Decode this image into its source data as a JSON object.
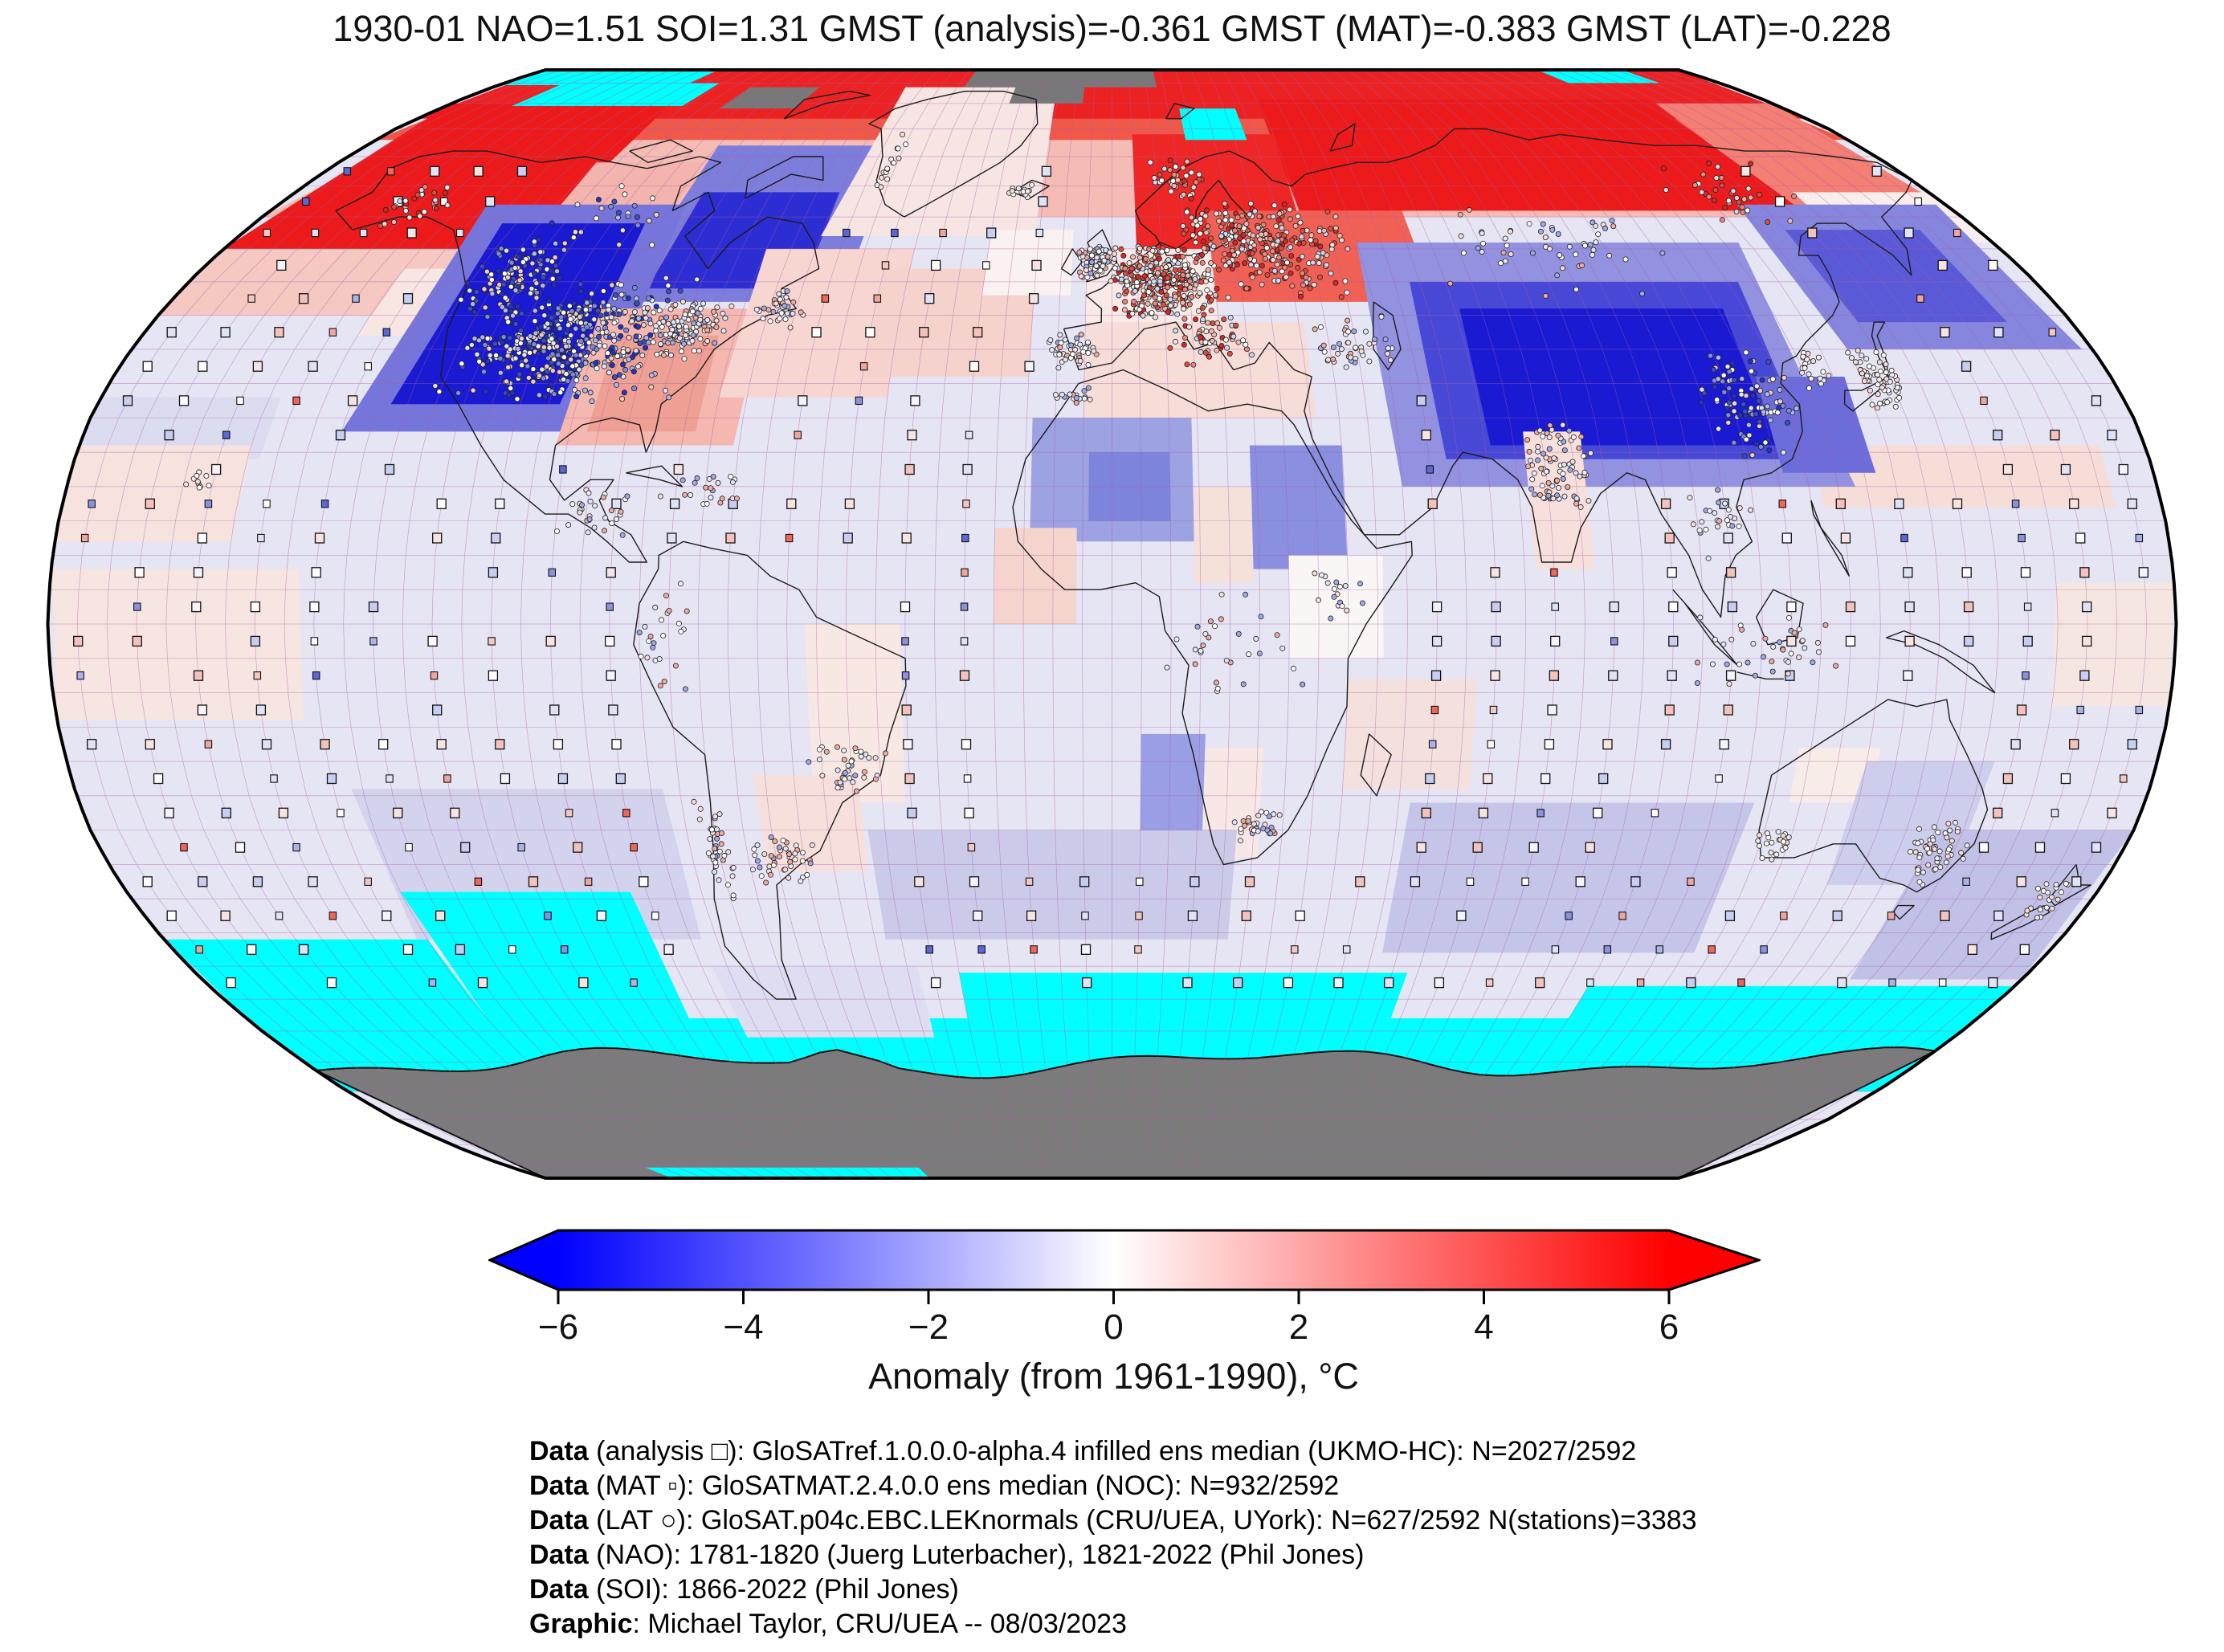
{
  "title": "1930-01 NAO=1.51 SOI=1.31 GMST (analysis)=-0.361 GMST (MAT)=-0.383 GMST (LAT)=-0.228",
  "colorbar": {
    "label": "Anomaly (from 1961-1990), °C",
    "ticks": [
      "−6",
      "−4",
      "−2",
      "0",
      "2",
      "4",
      "6"
    ],
    "min": -6,
    "max": 6,
    "left_color": "#0000fe",
    "mid_color": "#ffffff",
    "right_color": "#fe0000"
  },
  "credits": [
    {
      "bold": "Data",
      "rest": " (analysis □): GloSATref.1.0.0.0-alpha.4 infilled ens median (UKMO-HC): N=2027/2592"
    },
    {
      "bold": "Data",
      "rest": " (MAT ▫): GloSATMAT.2.4.0.0 ens median (NOC): N=932/2592"
    },
    {
      "bold": "Data",
      "rest": " (LAT ○): GloSAT.p04c.EBC.LEKnormals (CRU/UEA, UYork): N=627/2592 N(stations)=3383"
    },
    {
      "bold": "Data",
      "rest": " (NAO): 1781-1820 (Juerg Luterbacher), 1821-2022 (Phil Jones)"
    },
    {
      "bold": "Data",
      "rest": " (SOI): 1866-2022 (Phil Jones)"
    },
    {
      "bold": "Graphic",
      "rest": ": Michael Taylor, CRU/UEA -- 08/03/2023"
    }
  ],
  "chart_data": {
    "type": "heatmap",
    "projection": "robinson",
    "period": "1930-01",
    "indices": {
      "NAO": 1.51,
      "SOI": 1.31,
      "GMST_analysis": -0.361,
      "GMST_MAT": -0.383,
      "GMST_LAT": -0.228
    },
    "counts": {
      "analysis_cells": "2027/2592",
      "MAT_cells": "932/2592",
      "LAT_cells": "627/2592",
      "stations": 3383
    },
    "legend_symbols": {
      "analysis": "□",
      "MAT": "▫",
      "LAT": "○"
    },
    "colormap": {
      "name": "blue-white-red",
      "scale_min": -6,
      "scale_max": 6,
      "missing_ocean": "#00ffff",
      "no_data_land": "#7b7b7b",
      "grid_line": "#a85ca8"
    },
    "anomaly_patches": [
      [
        -180,
        60,
        180,
        90,
        "#f5bcb6"
      ],
      [
        -180,
        73,
        180,
        90,
        "#f0584a"
      ],
      [
        -180,
        77,
        180,
        90,
        "#ec2222"
      ],
      [
        -180,
        55,
        -120,
        80,
        "#ec1a1a"
      ],
      [
        -180,
        45,
        -130,
        55,
        "#f5c8c2"
      ],
      [
        -140,
        42,
        -120,
        52,
        "#f8e6e2"
      ],
      [
        -180,
        24,
        -148,
        33,
        "#dcdcf1"
      ],
      [
        -180,
        12,
        -150,
        26,
        "#f7e2de"
      ],
      [
        40,
        61,
        148,
        81,
        "#ec1a1a"
      ],
      [
        5,
        52,
        40,
        74,
        "#ee2626"
      ],
      [
        20,
        47,
        62,
        61,
        "#f16055"
      ],
      [
        -5,
        30,
        36,
        44,
        "#f6ddd8"
      ],
      [
        -5,
        44,
        20,
        55,
        "#f9eae8"
      ],
      [
        148,
        60,
        180,
        80,
        "#f37f75"
      ],
      [
        150,
        56,
        180,
        64,
        "#f8eeec"
      ],
      [
        -120,
        50,
        -95,
        69,
        "#f3b4ae"
      ],
      [
        -95,
        47,
        -52,
        72,
        "#7d7ddc"
      ],
      [
        -90,
        49,
        -60,
        64,
        "#2d2dd4"
      ],
      [
        -60,
        57,
        -16,
        84,
        "#f6e5e3"
      ],
      [
        -135,
        28,
        -92,
        62,
        "#7575db"
      ],
      [
        -128,
        32,
        -98,
        59,
        "#1a1ad2"
      ],
      [
        -97,
        26,
        -66,
        46,
        "#f4b8b0"
      ],
      [
        -92,
        28,
        -73,
        42,
        "#efa094"
      ],
      [
        -70,
        33,
        -40,
        55,
        "#f7d6d2"
      ],
      [
        -45,
        36,
        -15,
        52,
        "#f5d2cc"
      ],
      [
        -25,
        48,
        -8,
        58,
        "#faf2f0"
      ],
      [
        135,
        40,
        178,
        62,
        "#8686de"
      ],
      [
        140,
        44,
        168,
        58,
        "#5a5ad8"
      ],
      [
        122,
        17,
        172,
        26,
        "#f7ddd8"
      ],
      [
        50,
        20,
        128,
        56,
        "#9292e0"
      ],
      [
        58,
        24,
        122,
        50,
        "#4848d6"
      ],
      [
        66,
        26,
        116,
        46,
        "#1a1ad2"
      ],
      [
        116,
        22,
        132,
        36,
        "#6c6cda"
      ],
      [
        -14,
        12,
        14,
        30,
        "#9ca2e2"
      ],
      [
        -4,
        15,
        10,
        25,
        "#7c84dc"
      ],
      [
        24,
        8,
        40,
        26,
        "#8a8fe0"
      ],
      [
        30,
        -5,
        46,
        10,
        "#faf6f5"
      ],
      [
        14,
        6,
        24,
        20,
        "#f6e0da"
      ],
      [
        -20,
        0,
        -6,
        14,
        "#f5d4ce"
      ],
      [
        72,
        8,
        82,
        28,
        "#f7e0dc"
      ],
      [
        5,
        -32,
        16,
        -16,
        "#9a9ee4"
      ],
      [
        16,
        -34,
        26,
        -18,
        "#f8e8e5"
      ],
      [
        -180,
        -14,
        -138,
        8,
        "#f7e5e1"
      ],
      [
        160,
        -12,
        180,
        6,
        "#f6e6e2"
      ],
      [
        -52,
        -26,
        -36,
        0,
        "#f8e8e4"
      ],
      [
        -62,
        -36,
        -44,
        -22,
        "#f7e0db"
      ],
      [
        -43,
        -46,
        22,
        -30,
        "#cbcbe9"
      ],
      [
        52,
        -48,
        112,
        -26,
        "#c5c5ea"
      ],
      [
        40,
        -24,
        62,
        -8,
        "#f4e0dd"
      ],
      [
        -132,
        -46,
        -78,
        -24,
        "#d3d3ee"
      ],
      [
        118,
        -26,
        132,
        -18,
        "#f8ece8"
      ],
      [
        130,
        -38,
        152,
        -20,
        "#cdcdec"
      ],
      [
        146,
        -52,
        180,
        -30,
        "#c1c1e7"
      ],
      [
        -180,
        -70,
        180,
        -58,
        "#00ffff"
      ],
      [
        -180,
        -58,
        -130,
        -46,
        "#00ffff"
      ],
      [
        -130,
        -58,
        -88,
        -39,
        "#00ffff"
      ],
      [
        -30,
        -58,
        58,
        -51,
        "#00ffff"
      ],
      [
        95,
        -58,
        180,
        -53,
        "#00ffff"
      ],
      [
        -78,
        -61,
        -38,
        -50,
        "#deddf1"
      ],
      [
        -180,
        84.5,
        -125,
        90,
        "#00ffff"
      ],
      [
        -162,
        79.5,
        -116,
        85,
        "#00ffff"
      ],
      [
        135,
        85,
        162,
        90,
        "#00ffff"
      ],
      [
        18,
        73,
        33,
        79,
        "#00ffff"
      ],
      [
        -43,
        84,
        13,
        90,
        "#787878"
      ],
      [
        -28,
        80,
        -8,
        85,
        "#787878"
      ],
      [
        -105,
        79,
        -85,
        84,
        "#787878"
      ]
    ],
    "post_patches": [
      [
        -140,
        -90,
        -58,
        -86,
        "#00ffff"
      ]
    ],
    "station_clusters": [
      [
        -100,
        41,
        22,
        10,
        500,
        "cool"
      ],
      [
        -117,
        51,
        9,
        6,
        110,
        "cool"
      ],
      [
        -80,
        43,
        8,
        5,
        120,
        "mixed"
      ],
      [
        -63,
        46,
        5,
        3,
        40,
        "mixed"
      ],
      [
        -150,
        62,
        8,
        4,
        30,
        "warm"
      ],
      [
        -106,
        60,
        14,
        6,
        25,
        "cool"
      ],
      [
        10,
        50,
        11,
        6,
        400,
        "warm"
      ],
      [
        25,
        57,
        11,
        6,
        150,
        "warm"
      ],
      [
        35,
        55,
        14,
        8,
        160,
        "warm"
      ],
      [
        -3,
        53,
        4,
        3,
        80,
        "mixed"
      ],
      [
        -7,
        40,
        5,
        3,
        45,
        "mixed"
      ],
      [
        18,
        41,
        8,
        4,
        60,
        "warm"
      ],
      [
        44,
        41,
        9,
        5,
        45,
        "mixed"
      ],
      [
        15,
        66,
        7,
        4,
        40,
        "warm"
      ],
      [
        -20,
        64,
        3,
        2,
        14,
        "white"
      ],
      [
        -51,
        68,
        3,
        6,
        16,
        "white"
      ],
      [
        77,
        22,
        7,
        8,
        85,
        "mixed"
      ],
      [
        113,
        32,
        9,
        9,
        100,
        "cool"
      ],
      [
        138,
        36,
        4,
        5,
        65,
        "white"
      ],
      [
        127,
        37,
        3,
        3,
        22,
        "white"
      ],
      [
        104,
        15,
        6,
        6,
        25,
        "mixed"
      ],
      [
        112,
        -4,
        16,
        6,
        40,
        "mixed"
      ],
      [
        90,
        55,
        25,
        8,
        55,
        "mixed"
      ],
      [
        135,
        64,
        15,
        6,
        35,
        "warm"
      ],
      [
        147,
        -33,
        6,
        5,
        55,
        "white"
      ],
      [
        117,
        -32,
        4,
        3,
        22,
        "white"
      ],
      [
        172,
        -40,
        4,
        4,
        22,
        "white"
      ],
      [
        -70,
        -33,
        3,
        9,
        40,
        "mixed"
      ],
      [
        -59,
        -34,
        6,
        4,
        45,
        "mixed"
      ],
      [
        -46,
        -21,
        8,
        5,
        40,
        "mixed"
      ],
      [
        -76,
        -2,
        5,
        9,
        25,
        "mixed"
      ],
      [
        -89,
        16,
        7,
        4,
        30,
        "mixed"
      ],
      [
        -70,
        19,
        8,
        3,
        22,
        "mixed"
      ],
      [
        20,
        -3,
        14,
        10,
        30,
        "mixed"
      ],
      [
        26,
        -29,
        5,
        3,
        30,
        "mixed"
      ],
      [
        -7,
        33,
        4,
        2,
        16,
        "mixed"
      ],
      [
        38,
        5,
        5,
        6,
        18,
        "mixed"
      ],
      [
        -157,
        21,
        3,
        1.5,
        10,
        "white"
      ]
    ]
  }
}
